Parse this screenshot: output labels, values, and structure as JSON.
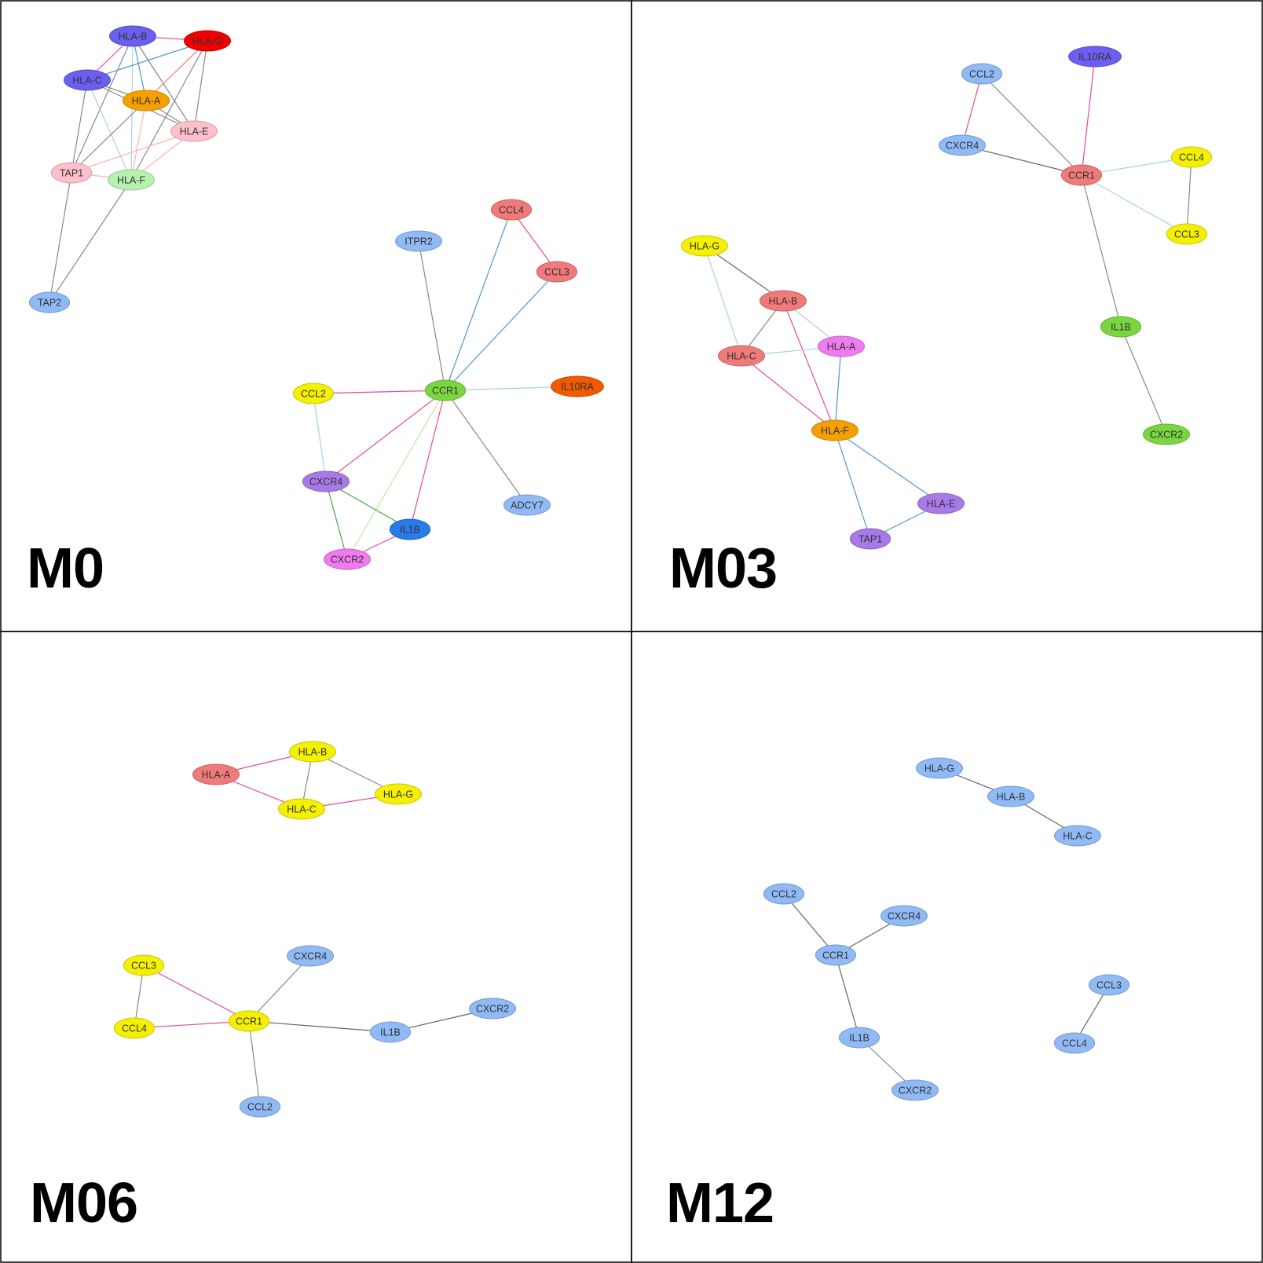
{
  "panels": [
    {
      "title": "M0",
      "nodes": [
        {
          "id": "HLA-B",
          "color": "#6a5ff0"
        },
        {
          "id": "HLA-G",
          "color": "#ee0000"
        },
        {
          "id": "HLA-C",
          "color": "#6a5ff0"
        },
        {
          "id": "HLA-A",
          "color": "#f5a000"
        },
        {
          "id": "HLA-E",
          "color": "#ffc0cb"
        },
        {
          "id": "TAP1",
          "color": "#ffc0cb"
        },
        {
          "id": "HLA-F",
          "color": "#b8f0b0"
        },
        {
          "id": "TAP2",
          "color": "#90baf5"
        },
        {
          "id": "CCL4",
          "color": "#f07a7a"
        },
        {
          "id": "ITPR2",
          "color": "#90baf5"
        },
        {
          "id": "CCL3",
          "color": "#f07a7a"
        },
        {
          "id": "CCL2",
          "color": "#f5f000"
        },
        {
          "id": "CCR1",
          "color": "#7ad640"
        },
        {
          "id": "IL10RA",
          "color": "#f05a00"
        },
        {
          "id": "CXCR4",
          "color": "#a87ae8"
        },
        {
          "id": "ADCY7",
          "color": "#90baf5"
        },
        {
          "id": "IL1B",
          "color": "#2a7ae8"
        },
        {
          "id": "CXCR2",
          "color": "#f07af0"
        }
      ],
      "edges": [
        {
          "source": "HLA-B",
          "target": "HLA-G",
          "color": "#e84a9a"
        },
        {
          "source": "HLA-B",
          "target": "HLA-C",
          "color": "#e84a9a"
        },
        {
          "source": "HLA-B",
          "target": "HLA-A",
          "color": "#4a9ac8"
        },
        {
          "source": "HLA-B",
          "target": "HLA-E",
          "color": "#888888"
        },
        {
          "source": "HLA-B",
          "target": "TAP1",
          "color": "#888888"
        },
        {
          "source": "HLA-B",
          "target": "HLA-F",
          "color": "#a8d0e8"
        },
        {
          "source": "HLA-G",
          "target": "HLA-C",
          "color": "#4a9ac8"
        },
        {
          "source": "HLA-G",
          "target": "HLA-A",
          "color": "#f07a7a"
        },
        {
          "source": "HLA-G",
          "target": "HLA-E",
          "color": "#888888"
        },
        {
          "source": "HLA-G",
          "target": "HLA-F",
          "color": "#888888"
        },
        {
          "source": "HLA-C",
          "target": "HLA-A",
          "color": "#888888"
        },
        {
          "source": "HLA-C",
          "target": "HLA-E",
          "color": "#888888"
        },
        {
          "source": "HLA-C",
          "target": "TAP1",
          "color": "#888888"
        },
        {
          "source": "HLA-C",
          "target": "HLA-F",
          "color": "#a8d0e8"
        },
        {
          "source": "HLA-A",
          "target": "HLA-E",
          "color": "#888888"
        },
        {
          "source": "HLA-A",
          "target": "TAP1",
          "color": "#888888"
        },
        {
          "source": "HLA-A",
          "target": "HLA-F",
          "color": "#ffb0b0"
        },
        {
          "source": "HLA-E",
          "target": "TAP1",
          "color": "#ffb0b0"
        },
        {
          "source": "HLA-E",
          "target": "HLA-F",
          "color": "#ffb0b0"
        },
        {
          "source": "TAP1",
          "target": "HLA-F",
          "color": "#ffb0b0"
        },
        {
          "source": "TAP1",
          "target": "TAP2",
          "color": "#888888"
        },
        {
          "source": "HLA-F",
          "target": "TAP2",
          "color": "#888888"
        },
        {
          "source": "CCR1",
          "target": "ITPR2",
          "color": "#888888"
        },
        {
          "source": "CCR1",
          "target": "CCL4",
          "color": "#4a9ac8"
        },
        {
          "source": "CCR1",
          "target": "CCL3",
          "color": "#4a9ac8"
        },
        {
          "source": "CCL4",
          "target": "CCL3",
          "color": "#e84a9a"
        },
        {
          "source": "CCR1",
          "target": "CCL2",
          "color": "#e84a9a"
        },
        {
          "source": "CCR1",
          "target": "IL10RA",
          "color": "#a8d0e8"
        },
        {
          "source": "CCR1",
          "target": "CXCR4",
          "color": "#e84a9a"
        },
        {
          "source": "CCR1",
          "target": "ADCY7",
          "color": "#888888"
        },
        {
          "source": "CCR1",
          "target": "IL1B",
          "color": "#e84a9a"
        },
        {
          "source": "CCR1",
          "target": "CXCR2",
          "color": "#c0e8a0"
        },
        {
          "source": "CCL2",
          "target": "CXCR4",
          "color": "#a8d0e8"
        },
        {
          "source": "CXCR4",
          "target": "IL1B",
          "color": "#4aa84a"
        },
        {
          "source": "CXCR4",
          "target": "CXCR2",
          "color": "#4aa84a"
        },
        {
          "source": "IL1B",
          "target": "CXCR2",
          "color": "#e84a9a"
        }
      ]
    },
    {
      "title": "M03",
      "nodes": [
        {
          "id": "IL10RA",
          "color": "#6a5ff0"
        },
        {
          "id": "CCL2",
          "color": "#90baf5"
        },
        {
          "id": "CXCR4",
          "color": "#90baf5"
        },
        {
          "id": "CCR1",
          "color": "#f07a7a"
        },
        {
          "id": "CCL4",
          "color": "#f5f000"
        },
        {
          "id": "CCL3",
          "color": "#f5f000"
        },
        {
          "id": "IL1B",
          "color": "#7ad640"
        },
        {
          "id": "CXCR2",
          "color": "#7ad640"
        },
        {
          "id": "HLA-G",
          "color": "#f5f000"
        },
        {
          "id": "HLA-B",
          "color": "#f07a7a"
        },
        {
          "id": "HLA-C",
          "color": "#f07a7a"
        },
        {
          "id": "HLA-A",
          "color": "#f07af0"
        },
        {
          "id": "HLA-F",
          "color": "#f5a000"
        },
        {
          "id": "HLA-E",
          "color": "#a87ae8"
        },
        {
          "id": "TAP1",
          "color": "#a87ae8"
        }
      ],
      "edges": [
        {
          "source": "CCR1",
          "target": "IL10RA",
          "color": "#e84a9a"
        },
        {
          "source": "CCR1",
          "target": "CCL2",
          "color": "#888888"
        },
        {
          "source": "CCR1",
          "target": "CXCR4",
          "color": "#666666"
        },
        {
          "source": "CCL2",
          "target": "CXCR4",
          "color": "#e84a9a"
        },
        {
          "source": "CCR1",
          "target": "CCL4",
          "color": "#a8d0e8"
        },
        {
          "source": "CCR1",
          "target": "CCL3",
          "color": "#a8d0e8"
        },
        {
          "source": "CCL4",
          "target": "CCL3",
          "color": "#888888"
        },
        {
          "source": "CCR1",
          "target": "IL1B",
          "color": "#888888"
        },
        {
          "source": "IL1B",
          "target": "CXCR2",
          "color": "#888888"
        },
        {
          "source": "HLA-G",
          "target": "HLA-B",
          "color": "#666666"
        },
        {
          "source": "HLA-G",
          "target": "HLA-C",
          "color": "#a8d0e8"
        },
        {
          "source": "HLA-B",
          "target": "HLA-C",
          "color": "#888888"
        },
        {
          "source": "HLA-B",
          "target": "HLA-A",
          "color": "#a8d0e8"
        },
        {
          "source": "HLA-B",
          "target": "HLA-F",
          "color": "#e84a9a"
        },
        {
          "source": "HLA-C",
          "target": "HLA-A",
          "color": "#a8d0e8"
        },
        {
          "source": "HLA-C",
          "target": "HLA-F",
          "color": "#e84a9a"
        },
        {
          "source": "HLA-A",
          "target": "HLA-F",
          "color": "#4a9ac8"
        },
        {
          "source": "HLA-F",
          "target": "HLA-E",
          "color": "#4a9ac8"
        },
        {
          "source": "HLA-F",
          "target": "TAP1",
          "color": "#4a9ac8"
        },
        {
          "source": "HLA-E",
          "target": "TAP1",
          "color": "#4a9ac8"
        }
      ]
    },
    {
      "title": "M06",
      "nodes": [
        {
          "id": "HLA-B",
          "color": "#f5f000"
        },
        {
          "id": "HLA-A",
          "color": "#f07a7a"
        },
        {
          "id": "HLA-G",
          "color": "#f5f000"
        },
        {
          "id": "HLA-C",
          "color": "#f5f000"
        },
        {
          "id": "CXCR4",
          "color": "#90baf5"
        },
        {
          "id": "CCL3",
          "color": "#f5f000"
        },
        {
          "id": "CXCR2",
          "color": "#90baf5"
        },
        {
          "id": "CCR1",
          "color": "#f5f000"
        },
        {
          "id": "CCL4",
          "color": "#f5f000"
        },
        {
          "id": "IL1B",
          "color": "#90baf5"
        },
        {
          "id": "CCL2",
          "color": "#90baf5"
        }
      ],
      "edges": [
        {
          "source": "HLA-A",
          "target": "HLA-B",
          "color": "#e84a9a"
        },
        {
          "source": "HLA-A",
          "target": "HLA-C",
          "color": "#e84a9a"
        },
        {
          "source": "HLA-B",
          "target": "HLA-C",
          "color": "#888888"
        },
        {
          "source": "HLA-B",
          "target": "HLA-G",
          "color": "#888888"
        },
        {
          "source": "HLA-C",
          "target": "HLA-G",
          "color": "#e84a9a"
        },
        {
          "source": "CCL3",
          "target": "CCL4",
          "color": "#888888"
        },
        {
          "source": "CCL3",
          "target": "CCR1",
          "color": "#e84a9a"
        },
        {
          "source": "CCL4",
          "target": "CCR1",
          "color": "#e84a9a"
        },
        {
          "source": "CCR1",
          "target": "CXCR4",
          "color": "#888888"
        },
        {
          "source": "CCR1",
          "target": "IL1B",
          "color": "#666666"
        },
        {
          "source": "IL1B",
          "target": "CXCR2",
          "color": "#666666"
        },
        {
          "source": "CCR1",
          "target": "CCL2",
          "color": "#888888"
        }
      ]
    },
    {
      "title": "M12",
      "nodes": [
        {
          "id": "HLA-G",
          "color": "#90baf5"
        },
        {
          "id": "HLA-B",
          "color": "#90baf5"
        },
        {
          "id": "HLA-C",
          "color": "#90baf5"
        },
        {
          "id": "CCL2",
          "color": "#90baf5"
        },
        {
          "id": "CXCR4",
          "color": "#90baf5"
        },
        {
          "id": "CCR1",
          "color": "#90baf5"
        },
        {
          "id": "CCL3",
          "color": "#90baf5"
        },
        {
          "id": "IL1B",
          "color": "#90baf5"
        },
        {
          "id": "CCL4",
          "color": "#90baf5"
        },
        {
          "id": "CXCR2",
          "color": "#90baf5"
        }
      ],
      "edges": [
        {
          "source": "HLA-G",
          "target": "HLA-B",
          "color": "#666666"
        },
        {
          "source": "HLA-B",
          "target": "HLA-C",
          "color": "#666666"
        },
        {
          "source": "CCL2",
          "target": "CCR1",
          "color": "#666666"
        },
        {
          "source": "CXCR4",
          "target": "CCR1",
          "color": "#666666"
        },
        {
          "source": "CCR1",
          "target": "IL1B",
          "color": "#666666"
        },
        {
          "source": "IL1B",
          "target": "CXCR2",
          "color": "#888888"
        },
        {
          "source": "CCL3",
          "target": "CCL4",
          "color": "#666666"
        }
      ]
    }
  ]
}
